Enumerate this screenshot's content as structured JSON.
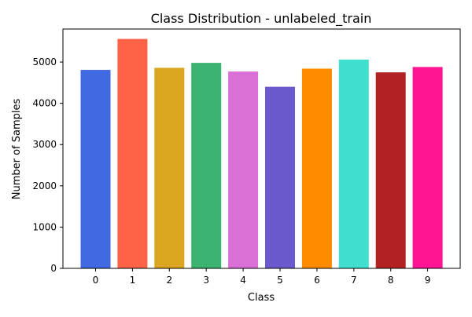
{
  "chart_data": {
    "type": "bar",
    "title": "Class Distribution - unlabeled_train",
    "xlabel": "Class",
    "ylabel": "Number of Samples",
    "categories": [
      "0",
      "1",
      "2",
      "3",
      "4",
      "5",
      "6",
      "7",
      "8",
      "9"
    ],
    "values": [
      4810,
      5560,
      4860,
      4980,
      4770,
      4400,
      4840,
      5060,
      4750,
      4880
    ],
    "colors": [
      "#4169e1",
      "#ff6347",
      "#daa520",
      "#3cb371",
      "#da70d6",
      "#6a5acd",
      "#ff8c00",
      "#40e0d0",
      "#b22222",
      "#ff1493"
    ],
    "ylim": [
      0,
      5800
    ],
    "yticks": [
      0,
      1000,
      2000,
      3000,
      4000,
      5000
    ],
    "grid": false,
    "legend": "none"
  }
}
